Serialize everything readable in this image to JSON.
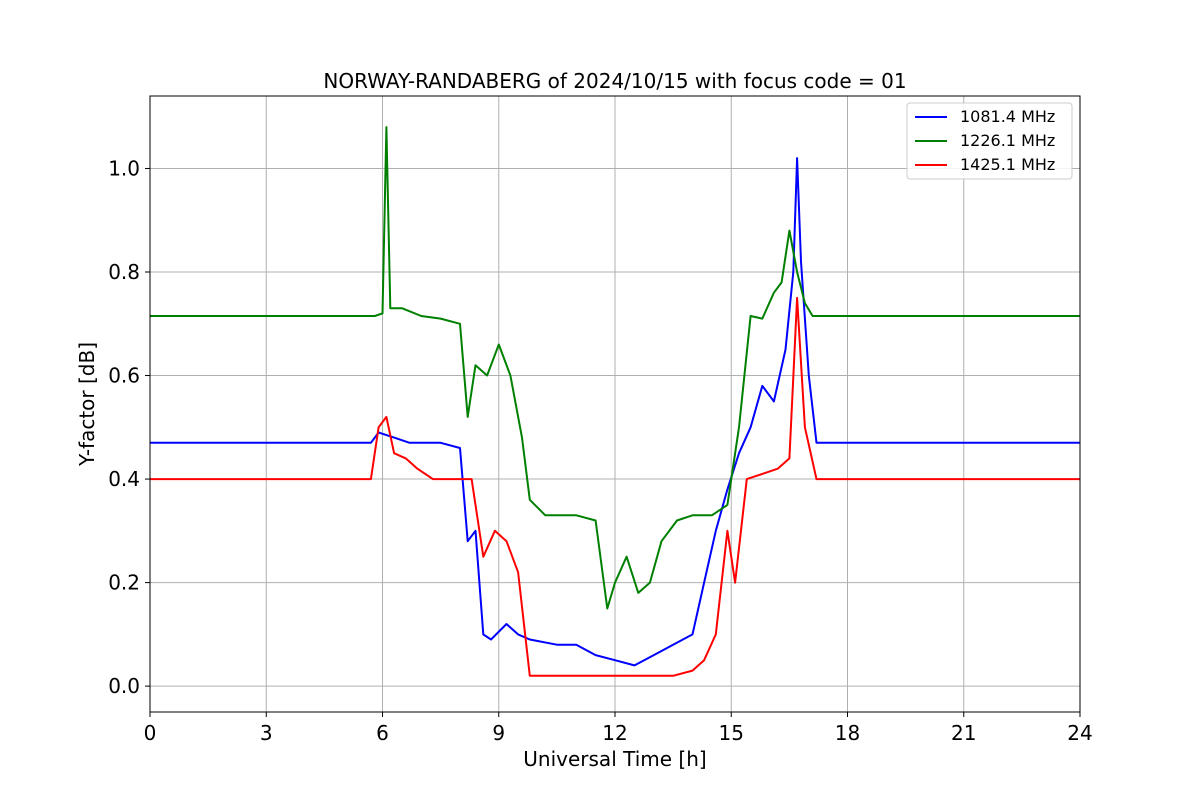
{
  "chart_data": {
    "type": "line",
    "title": "NORWAY-RANDABERG of 2024/10/15 with focus code = 01",
    "xlabel": "Universal Time [h]",
    "ylabel": "Y-factor [dB]",
    "xlim": [
      0,
      24
    ],
    "ylim": [
      -0.05,
      1.14
    ],
    "xticks": [
      0,
      3,
      6,
      9,
      12,
      15,
      18,
      21,
      24
    ],
    "yticks": [
      0.0,
      0.2,
      0.4,
      0.6,
      0.8,
      1.0
    ],
    "xtick_labels": [
      "0",
      "3",
      "6",
      "9",
      "12",
      "15",
      "18",
      "21",
      "24"
    ],
    "ytick_labels": [
      "0.0",
      "0.2",
      "0.4",
      "0.6",
      "0.8",
      "1.0"
    ],
    "grid": true,
    "legend_position": "top-right",
    "series": [
      {
        "name": "1081.4 MHz",
        "color": "#0000ff",
        "x": [
          0,
          1,
          2,
          3,
          4,
          5,
          5.7,
          5.9,
          6.3,
          6.7,
          7,
          7.5,
          8,
          8.2,
          8.4,
          8.6,
          8.8,
          9.2,
          9.5,
          9.8,
          10.5,
          11,
          11.5,
          12,
          12.5,
          13,
          13.5,
          14,
          14.3,
          14.6,
          14.9,
          15.2,
          15.5,
          15.8,
          16.1,
          16.4,
          16.6,
          16.7,
          16.8,
          17.0,
          17.2,
          18,
          19,
          20,
          21,
          22,
          23,
          24
        ],
        "y": [
          0.47,
          0.47,
          0.47,
          0.47,
          0.47,
          0.47,
          0.47,
          0.49,
          0.48,
          0.47,
          0.47,
          0.47,
          0.46,
          0.28,
          0.3,
          0.1,
          0.09,
          0.12,
          0.1,
          0.09,
          0.08,
          0.08,
          0.06,
          0.05,
          0.04,
          0.06,
          0.08,
          0.1,
          0.2,
          0.3,
          0.38,
          0.45,
          0.5,
          0.58,
          0.55,
          0.65,
          0.8,
          1.02,
          0.82,
          0.6,
          0.47,
          0.47,
          0.47,
          0.47,
          0.47,
          0.47,
          0.47,
          0.47
        ]
      },
      {
        "name": "1226.1 MHz",
        "color": "#008000",
        "x": [
          0,
          1,
          2,
          3,
          4,
          5,
          5.8,
          6.0,
          6.1,
          6.2,
          6.5,
          7,
          7.5,
          8,
          8.2,
          8.4,
          8.7,
          9.0,
          9.3,
          9.6,
          9.8,
          10.2,
          11,
          11.5,
          11.8,
          12,
          12.3,
          12.6,
          12.9,
          13.2,
          13.6,
          14.0,
          14.5,
          14.9,
          15.2,
          15.5,
          15.8,
          16.1,
          16.3,
          16.5,
          16.7,
          16.9,
          17.1,
          17.5,
          18,
          19,
          20,
          21,
          22,
          23,
          24
        ],
        "y": [
          0.715,
          0.715,
          0.715,
          0.715,
          0.715,
          0.715,
          0.715,
          0.72,
          1.08,
          0.73,
          0.73,
          0.715,
          0.71,
          0.7,
          0.52,
          0.62,
          0.6,
          0.66,
          0.6,
          0.48,
          0.36,
          0.33,
          0.33,
          0.32,
          0.15,
          0.2,
          0.25,
          0.18,
          0.2,
          0.28,
          0.32,
          0.33,
          0.33,
          0.35,
          0.5,
          0.715,
          0.71,
          0.76,
          0.78,
          0.88,
          0.8,
          0.74,
          0.715,
          0.715,
          0.715,
          0.715,
          0.715,
          0.715,
          0.715,
          0.715,
          0.715
        ]
      },
      {
        "name": "1425.1 MHz",
        "color": "#ff0000",
        "x": [
          0,
          1,
          2,
          3,
          4,
          5,
          5.7,
          5.9,
          6.1,
          6.3,
          6.6,
          6.9,
          7.3,
          8,
          8.3,
          8.6,
          8.9,
          9.2,
          9.5,
          9.8,
          10.3,
          11,
          11.5,
          12,
          12.5,
          13,
          13.5,
          14,
          14.3,
          14.6,
          14.9,
          15.1,
          15.4,
          15.8,
          16.2,
          16.5,
          16.7,
          16.9,
          17.2,
          18,
          19,
          20,
          21,
          22,
          23,
          24
        ],
        "y": [
          0.4,
          0.4,
          0.4,
          0.4,
          0.4,
          0.4,
          0.4,
          0.5,
          0.52,
          0.45,
          0.44,
          0.42,
          0.4,
          0.4,
          0.4,
          0.25,
          0.3,
          0.28,
          0.22,
          0.02,
          0.02,
          0.02,
          0.02,
          0.02,
          0.02,
          0.02,
          0.02,
          0.03,
          0.05,
          0.1,
          0.3,
          0.2,
          0.4,
          0.41,
          0.42,
          0.44,
          0.75,
          0.5,
          0.4,
          0.4,
          0.4,
          0.4,
          0.4,
          0.4,
          0.4,
          0.4
        ]
      }
    ]
  }
}
